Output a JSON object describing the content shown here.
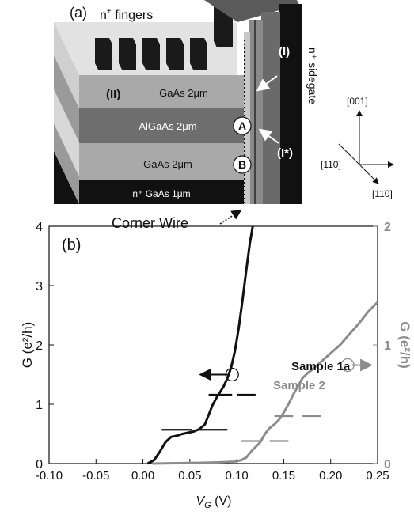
{
  "panel_a": {
    "panel_label": "(a)",
    "fingers_label_n": "n",
    "fingers_label_sup": "+",
    "fingers_label_rest": " fingers",
    "layers": [
      {
        "label": "GaAs 2μm"
      },
      {
        "label": "AlGaAs 2μm"
      },
      {
        "label": "GaAs 2μm"
      },
      {
        "label": "n⁺ GaAs 1μm"
      }
    ],
    "region_II": "(II)",
    "region_I": "(I)",
    "region_Istar": "(I*)",
    "point_A": "A",
    "point_B": "B",
    "sidegate_label": "n⁺ sidegate",
    "corner_wire_label": "Corner Wire",
    "crystal_axes": {
      "up": "[001]",
      "left": "[110]",
      "diag": "[11̄0]"
    }
  },
  "chart_data": {
    "type": "line",
    "panel_label": "(b)",
    "xlabel": "V",
    "xlabel_sub": "G",
    "xlabel_unit": " (V)",
    "xlim": [
      -0.1,
      0.25
    ],
    "xticks": [
      -0.1,
      -0.05,
      0.0,
      0.05,
      0.1,
      0.15,
      0.2,
      0.25
    ],
    "xtick_labels": [
      "-0.10",
      "-0.05",
      "0.00",
      "0.05",
      "0.10",
      "0.15",
      "0.20",
      "0.25"
    ],
    "ylabel_left": "G (e²/h)",
    "ylim_left": [
      0,
      4
    ],
    "yticks_left": [
      "0",
      "1",
      "2",
      "3",
      "4"
    ],
    "ylabel_right": "G (e²/h)",
    "ylim_right": [
      0,
      2
    ],
    "yticks_right": [
      "0",
      "1",
      "2"
    ],
    "series": [
      {
        "name": "Sample 1a",
        "color": "#111111",
        "axis": "left",
        "x": [
          0.005,
          0.012,
          0.018,
          0.024,
          0.03,
          0.036,
          0.042,
          0.048,
          0.054,
          0.06,
          0.066,
          0.07,
          0.074,
          0.078,
          0.082,
          0.086,
          0.09,
          0.094,
          0.098,
          0.102,
          0.106,
          0.11,
          0.114,
          0.117
        ],
        "y": [
          0.0,
          0.06,
          0.2,
          0.36,
          0.45,
          0.47,
          0.5,
          0.52,
          0.54,
          0.58,
          0.66,
          0.82,
          0.98,
          1.1,
          1.2,
          1.3,
          1.44,
          1.62,
          1.9,
          2.28,
          2.75,
          3.25,
          3.72,
          4.0
        ]
      },
      {
        "name": "Sample 2",
        "color": "#8c8c8c",
        "axis": "right",
        "x": [
          0.01,
          0.05,
          0.08,
          0.095,
          0.1,
          0.105,
          0.11,
          0.115,
          0.12,
          0.125,
          0.13,
          0.135,
          0.14,
          0.145,
          0.15,
          0.155,
          0.16,
          0.165,
          0.17,
          0.175,
          0.18,
          0.19,
          0.2,
          0.21,
          0.22,
          0.23,
          0.24,
          0.25
        ],
        "y": [
          0.0,
          0.005,
          0.01,
          0.015,
          0.02,
          0.03,
          0.05,
          0.1,
          0.14,
          0.18,
          0.25,
          0.3,
          0.33,
          0.37,
          0.43,
          0.5,
          0.58,
          0.65,
          0.72,
          0.76,
          0.79,
          0.86,
          0.93,
          1.0,
          1.09,
          1.18,
          1.28,
          1.36
        ]
      }
    ],
    "plateaus": [
      {
        "axis": "left",
        "x": [
          0.02,
          0.052
        ],
        "y": 0.57
      },
      {
        "axis": "left",
        "x": [
          0.06,
          0.09
        ],
        "y": 0.57
      },
      {
        "axis": "left",
        "x": [
          0.07,
          0.095
        ],
        "y": 1.16
      },
      {
        "axis": "left",
        "x": [
          0.1,
          0.12
        ],
        "y": 1.16
      },
      {
        "axis": "right",
        "x": [
          0.105,
          0.125
        ],
        "y": 0.19
      },
      {
        "axis": "right",
        "x": [
          0.135,
          0.155
        ],
        "y": 0.19
      },
      {
        "axis": "right",
        "x": [
          0.14,
          0.16
        ],
        "y": 0.4
      },
      {
        "axis": "right",
        "x": [
          0.17,
          0.19
        ],
        "y": 0.4
      }
    ],
    "markers": [
      {
        "series": "Sample 1a",
        "x": 0.095,
        "y": 1.5,
        "arrow": "left"
      },
      {
        "series": "Sample 2",
        "x": 0.218,
        "y": 0.83,
        "arrow": "right"
      }
    ],
    "legend": [
      {
        "label": "Sample 1a",
        "color": "#111111"
      },
      {
        "label": "Sample 2",
        "color": "#8c8c8c"
      }
    ],
    "grid": false
  }
}
